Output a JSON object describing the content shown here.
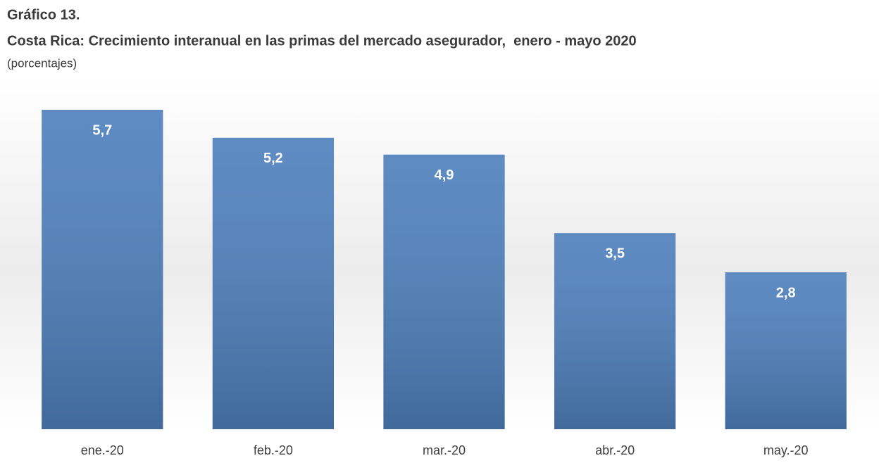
{
  "chart_data": {
    "type": "bar",
    "title": "Gráfico 13.",
    "subtitle": "Costa Rica: Crecimiento interanual en las primas del mercado asegurador,  enero - mayo 2020",
    "note": "(porcentajes)",
    "categories": [
      "ene.-20",
      "feb.-20",
      "mar.-20",
      "abr.-20",
      "may.-20"
    ],
    "values": [
      5.7,
      5.2,
      4.9,
      3.5,
      2.8
    ],
    "value_labels": [
      "5,7",
      "5,2",
      "4,9",
      "3,5",
      "2,8"
    ],
    "color": "#4f81bd"
  }
}
